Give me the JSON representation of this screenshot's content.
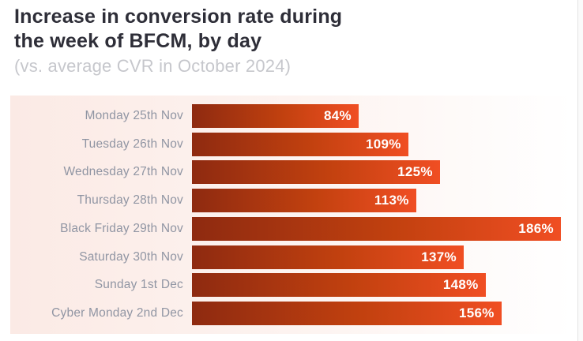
{
  "header": {
    "title_line1": "Increase in conversion rate during",
    "title_line2": "the week of BFCM, by day",
    "subtitle": "(vs. average CVR in October 2024)"
  },
  "chart_data": {
    "type": "bar",
    "orientation": "horizontal",
    "title": "Increase in conversion rate during the week of BFCM, by day",
    "subtitle": "(vs. average CVR in October 2024)",
    "categories": [
      "Monday 25th Nov",
      "Tuesday 26th Nov",
      "Wednesday 27th Nov",
      "Thursday 28th Nov",
      "Black Friday 29th Nov",
      "Saturday 30th Nov",
      "Sunday 1st Dec",
      "Cyber Monday 2nd Dec"
    ],
    "values": [
      84,
      109,
      125,
      113,
      186,
      137,
      148,
      156
    ],
    "value_labels": [
      "84%",
      "109%",
      "125%",
      "113%",
      "186%",
      "137%",
      "148%",
      "156%"
    ],
    "unit": "%",
    "xlim": [
      0,
      192
    ],
    "axis_scale_max": 192,
    "grid": false,
    "legend": "none",
    "value_label_position": "inside-end"
  },
  "colors": {
    "bar_gradient_start": "#8e2a10",
    "bar_gradient_end": "#f04e23",
    "panel_bg_start": "#fbeae5",
    "panel_bg_end": "#ffffff",
    "title_text": "#2e2e38",
    "subtitle_text": "#c6c7cc",
    "category_label_text": "#9095a3",
    "value_label_text": "#ffffff"
  }
}
